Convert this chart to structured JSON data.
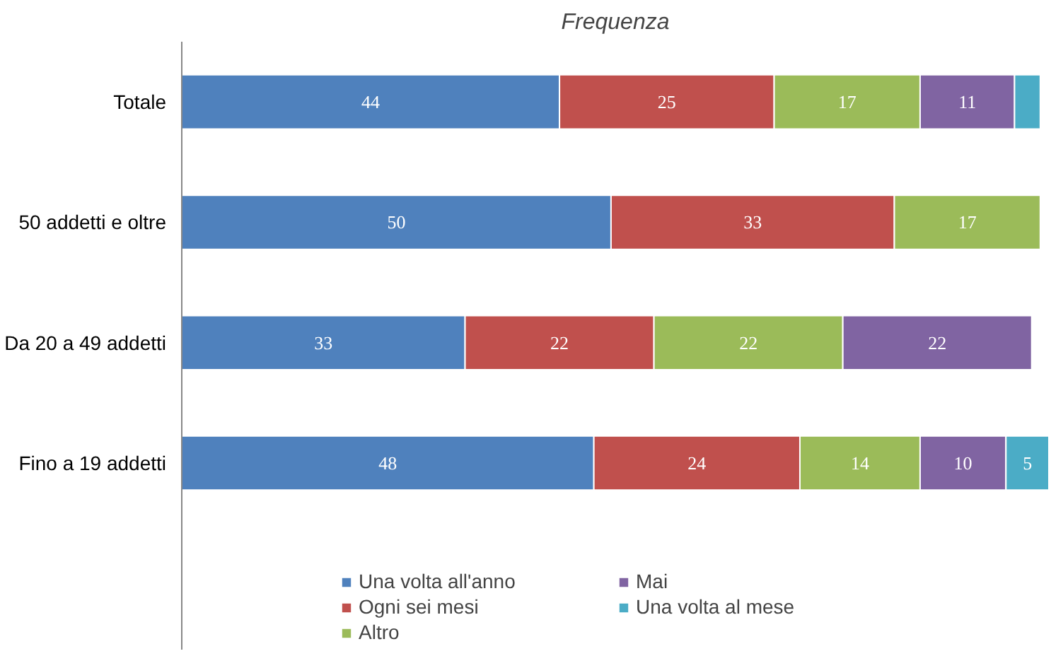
{
  "chart_data": {
    "type": "bar",
    "orientation": "horizontal",
    "stacked": true,
    "title": "Frequenza",
    "categories": [
      "Totale",
      "50 addetti e oltre",
      "Da 20 a 49 addetti",
      "Fino a 19 addetti"
    ],
    "series": [
      {
        "name": "Una volta all'anno",
        "color": "#4f81bd",
        "values": [
          44,
          50,
          33,
          48
        ]
      },
      {
        "name": "Ogni sei mesi",
        "color": "#c0504d",
        "values": [
          25,
          33,
          22,
          24
        ]
      },
      {
        "name": "Altro",
        "color": "#9bbb59",
        "values": [
          17,
          17,
          22,
          14
        ]
      },
      {
        "name": "Mai",
        "color": "#8064a2",
        "values": [
          11,
          null,
          22,
          10
        ]
      },
      {
        "name": "Una volta al mese",
        "color": "#4bacc6",
        "values": [
          3,
          null,
          null,
          5
        ],
        "value_labels": [
          null,
          null,
          null,
          "5"
        ]
      }
    ],
    "data_labels": true,
    "legend": "bottom",
    "grid": false,
    "tick_labels": "y"
  }
}
